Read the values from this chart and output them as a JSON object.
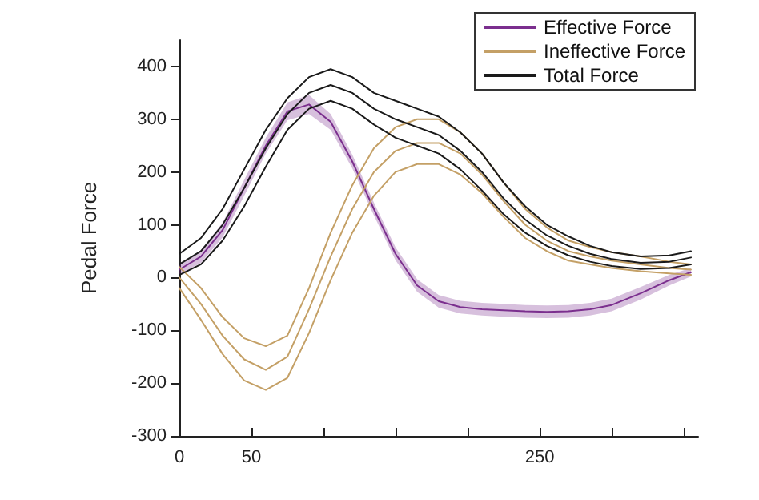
{
  "chart_data": {
    "type": "line",
    "ylabel": "Pedal Force",
    "x": [
      0,
      15,
      30,
      45,
      60,
      75,
      90,
      105,
      120,
      135,
      150,
      165,
      180,
      195,
      210,
      225,
      240,
      255,
      270,
      285,
      300,
      320,
      340,
      355
    ],
    "xlim": [
      0,
      360
    ],
    "xticks": [
      0,
      50,
      {
        "value": 100,
        "label": null
      },
      {
        "value": 150,
        "label": null
      },
      {
        "value": 200,
        "label": null
      },
      250,
      {
        "value": 300,
        "label": null
      },
      {
        "value": 350,
        "label": null
      }
    ],
    "ylim": [
      -300,
      450
    ],
    "yticks": [
      -300,
      -200,
      -100,
      0,
      100,
      200,
      300,
      400
    ],
    "grid": false,
    "legend": "top right",
    "marker": "none",
    "line_style": "solid",
    "series": [
      {
        "name": "Effective Force",
        "color": "#7b2f8e",
        "values": [
          15,
          40,
          90,
          170,
          250,
          315,
          328,
          295,
          220,
          130,
          45,
          -15,
          -45,
          -56,
          -60,
          -62,
          -64,
          -65,
          -64,
          -60,
          -52,
          -30,
          -5,
          10
        ],
        "lower": [
          5,
          28,
          76,
          155,
          235,
          298,
          310,
          280,
          207,
          118,
          33,
          -27,
          -57,
          -68,
          -72,
          -74,
          -76,
          -77,
          -76,
          -72,
          -64,
          -42,
          -15,
          2
        ],
        "upper": [
          25,
          52,
          104,
          185,
          265,
          332,
          346,
          310,
          233,
          142,
          57,
          -3,
          -33,
          -44,
          -48,
          -50,
          -52,
          -53,
          -52,
          -48,
          -40,
          -18,
          5,
          18
        ]
      },
      {
        "name": "Ineffective Force",
        "color": "#c4a066",
        "values": [
          0,
          -50,
          -110,
          -155,
          -175,
          -150,
          -60,
          40,
          130,
          200,
          240,
          255,
          255,
          235,
          195,
          145,
          100,
          70,
          50,
          40,
          32,
          25,
          18,
          15
        ]
      },
      {
        "color": "#c4a066",
        "values": [
          -20,
          -80,
          -145,
          -195,
          -213,
          -190,
          -105,
          -5,
          85,
          155,
          200,
          215,
          215,
          195,
          160,
          115,
          75,
          50,
          32,
          25,
          18,
          12,
          8,
          5
        ]
      },
      {
        "color": "#c4a066",
        "values": [
          20,
          -20,
          -75,
          -115,
          -130,
          -110,
          -20,
          85,
          175,
          245,
          285,
          300,
          300,
          275,
          235,
          180,
          130,
          95,
          70,
          58,
          48,
          40,
          30,
          25
        ]
      },
      {
        "name": "Total Force",
        "color": "#1a1a1a",
        "values": [
          25,
          50,
          100,
          170,
          245,
          310,
          350,
          365,
          350,
          320,
          300,
          285,
          270,
          240,
          200,
          150,
          110,
          80,
          60,
          45,
          35,
          28,
          30,
          38
        ]
      },
      {
        "color": "#1a1a1a",
        "values": [
          5,
          25,
          70,
          135,
          210,
          280,
          320,
          335,
          320,
          290,
          265,
          250,
          235,
          205,
          165,
          120,
          85,
          60,
          42,
          30,
          22,
          16,
          18,
          25
        ]
      },
      {
        "color": "#1a1a1a",
        "values": [
          45,
          75,
          130,
          205,
          280,
          340,
          380,
          395,
          380,
          350,
          335,
          320,
          305,
          275,
          235,
          180,
          135,
          100,
          78,
          60,
          48,
          40,
          42,
          50
        ]
      }
    ]
  }
}
